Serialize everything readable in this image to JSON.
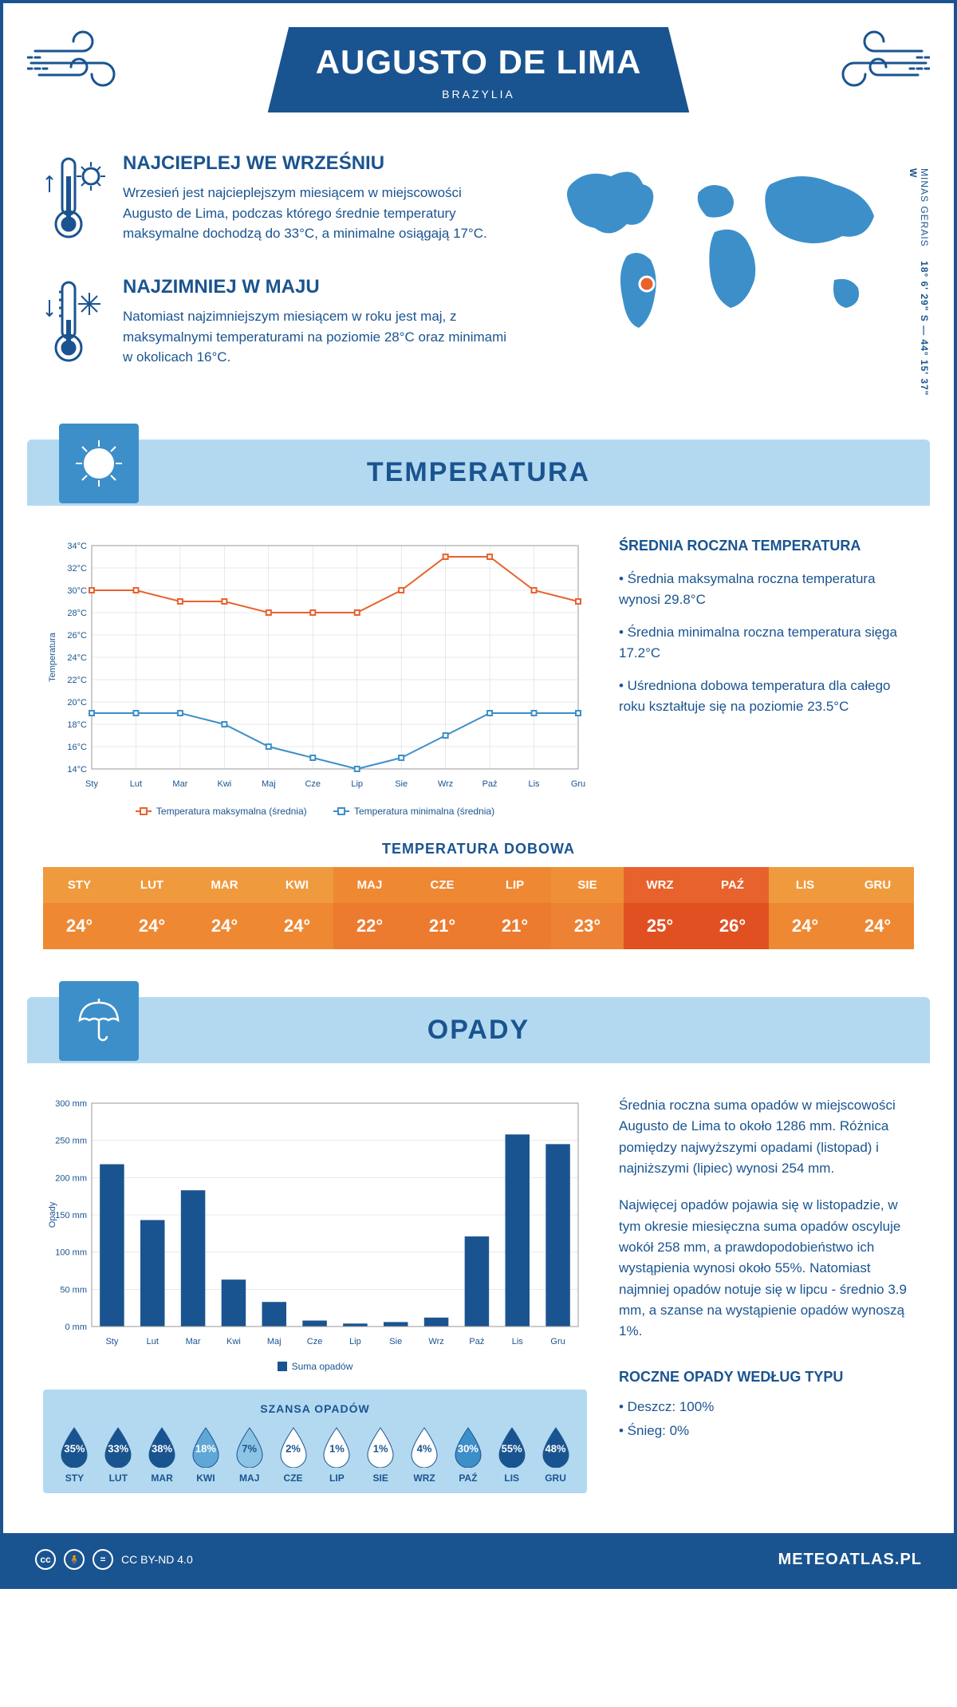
{
  "header": {
    "title": "AUGUSTO DE LIMA",
    "subtitle": "BRAZYLIA"
  },
  "intro": {
    "warmest": {
      "heading": "NAJCIEPLEJ WE WRZEŚNIU",
      "text": "Wrzesień jest najcieplejszym miesiącem w miejscowości Augusto de Lima, podczas którego średnie temperatury maksymalne dochodzą do 33°C, a minimalne osiągają 17°C."
    },
    "coldest": {
      "heading": "NAJZIMNIEJ W MAJU",
      "text": "Natomiast najzimniejszym miesiącem w roku jest maj, z maksymalnymi temperaturami na poziomie 28°C oraz minimami w okolicach 16°C."
    },
    "coords_region": "MINAS GERAIS",
    "coords_value": "18° 6' 29\" S — 44° 15' 37\" W"
  },
  "temperature": {
    "section_title": "TEMPERATURA",
    "chart": {
      "months": [
        "Sty",
        "Lut",
        "Mar",
        "Kwi",
        "Maj",
        "Cze",
        "Lip",
        "Sie",
        "Wrz",
        "Paź",
        "Lis",
        "Gru"
      ],
      "ylabel": "Temperatura",
      "ylim": [
        14,
        34
      ],
      "ytick_step": 2,
      "ytick_suffix": "°C",
      "series_max": {
        "label": "Temperatura maksymalna (średnia)",
        "color": "#e8622d",
        "values": [
          30,
          30,
          29,
          29,
          28,
          28,
          28,
          30,
          33,
          33,
          30,
          29
        ]
      },
      "series_min": {
        "label": "Temperatura minimalna (średnia)",
        "color": "#3d8fc9",
        "values": [
          19,
          19,
          19,
          18,
          16,
          15,
          14,
          15,
          17,
          19,
          19,
          19
        ]
      },
      "grid_color": "#d0d0d0",
      "background": "#ffffff"
    },
    "side": {
      "heading": "ŚREDNIA ROCZNA TEMPERATURA",
      "bullets": [
        "• Średnia maksymalna roczna temperatura wynosi 29.8°C",
        "• Średnia minimalna roczna temperatura sięga 17.2°C",
        "• Uśredniona dobowa temperatura dla całego roku kształtuje się na poziomie 23.5°C"
      ]
    },
    "daily": {
      "title": "TEMPERATURA DOBOWA",
      "months": [
        "STY",
        "LUT",
        "MAR",
        "KWI",
        "MAJ",
        "CZE",
        "LIP",
        "SIE",
        "WRZ",
        "PAŹ",
        "LIS",
        "GRU"
      ],
      "values": [
        "24°",
        "24°",
        "24°",
        "24°",
        "22°",
        "21°",
        "21°",
        "23°",
        "25°",
        "26°",
        "24°",
        "24°"
      ],
      "head_colors": [
        "#f09a3e",
        "#f09a3e",
        "#f09a3e",
        "#f09a3e",
        "#ee8833",
        "#ee8833",
        "#ee8833",
        "#ef9038",
        "#e8622d",
        "#e8622d",
        "#f09a3e",
        "#f09a3e"
      ],
      "val_colors": [
        "#ee8833",
        "#ee8833",
        "#ee8833",
        "#ee8833",
        "#ec7a2f",
        "#ec7a2f",
        "#ec7a2f",
        "#ed8234",
        "#e15020",
        "#e15020",
        "#ee8833",
        "#ee8833"
      ]
    }
  },
  "precipitation": {
    "section_title": "OPADY",
    "chart": {
      "months": [
        "Sty",
        "Lut",
        "Mar",
        "Kwi",
        "Maj",
        "Cze",
        "Lip",
        "Sie",
        "Wrz",
        "Paź",
        "Lis",
        "Gru"
      ],
      "ylabel": "Opady",
      "ylim": [
        0,
        300
      ],
      "ytick_step": 50,
      "ytick_suffix": " mm",
      "bar_color": "#1a5490",
      "values": [
        218,
        143,
        183,
        63,
        33,
        8,
        4,
        6,
        12,
        121,
        258,
        245
      ],
      "legend_label": "Suma opadów",
      "grid_color": "#d0d0d0"
    },
    "text": {
      "p1": "Średnia roczna suma opadów w miejscowości Augusto de Lima to około 1286 mm. Różnica pomiędzy najwyższymi opadami (listopad) i najniższymi (lipiec) wynosi 254 mm.",
      "p2": "Najwięcej opadów pojawia się w listopadzie, w tym okresie miesięczna suma opadów oscyluje wokół 258 mm, a prawdopodobieństwo ich wystąpienia wynosi około 55%. Natomiast najmniej opadów notuje się w lipcu - średnio 3.9 mm, a szanse na wystąpienie opadów wynoszą 1%."
    },
    "chance": {
      "title": "SZANSA OPADÓW",
      "months": [
        "STY",
        "LUT",
        "MAR",
        "KWI",
        "MAJ",
        "CZE",
        "LIP",
        "SIE",
        "WRZ",
        "PAŹ",
        "LIS",
        "GRU"
      ],
      "values": [
        "35%",
        "33%",
        "38%",
        "18%",
        "7%",
        "2%",
        "1%",
        "1%",
        "4%",
        "30%",
        "55%",
        "48%"
      ],
      "fill_colors": [
        "#1a5490",
        "#1a5490",
        "#1a5490",
        "#5fa8d6",
        "#8cc4e4",
        "#ffffff",
        "#ffffff",
        "#ffffff",
        "#ffffff",
        "#3d8fc9",
        "#1a5490",
        "#1a5490"
      ],
      "text_colors": [
        "#ffffff",
        "#ffffff",
        "#ffffff",
        "#ffffff",
        "#1a5490",
        "#1a5490",
        "#1a5490",
        "#1a5490",
        "#1a5490",
        "#ffffff",
        "#ffffff",
        "#ffffff"
      ]
    },
    "types": {
      "heading": "ROCZNE OPADY WEDŁUG TYPU",
      "items": [
        "• Deszcz: 100%",
        "• Śnieg: 0%"
      ]
    }
  },
  "footer": {
    "license": "CC BY-ND 4.0",
    "site": "METEOATLAS.PL"
  },
  "colors": {
    "primary": "#1a5490",
    "light_blue": "#b3d9f0",
    "mid_blue": "#3d8fc9"
  }
}
